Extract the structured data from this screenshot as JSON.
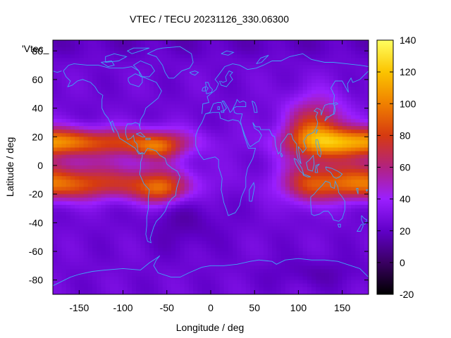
{
  "chart_data": {
    "type": "heatmap",
    "title": "VTEC / TECU 20231126_330.06300",
    "xlabel": "Longitude / deg",
    "ylabel": "Latitude / deg",
    "series_label": "'Vtec_",
    "xlim": [
      -180,
      180
    ],
    "ylim": [
      -90,
      87.5
    ],
    "x_ticks": [
      -150,
      -100,
      -50,
      0,
      50,
      100,
      150
    ],
    "y_ticks": [
      -80,
      -60,
      -40,
      -20,
      0,
      20,
      40,
      60,
      80
    ],
    "colorbar": {
      "range": [
        -20,
        140
      ],
      "ticks": [
        -20,
        0,
        20,
        40,
        60,
        80,
        100,
        120,
        140
      ],
      "palette": [
        "#000000",
        "#3a0062",
        "#6000c8",
        "#9b1fff",
        "#b22280",
        "#d63a10",
        "#f08000",
        "#fbc400",
        "#ffff60"
      ]
    },
    "grid": false,
    "colormap_features": {
      "background_vtec": 25,
      "crest_max_vtec": 115,
      "crests": [
        {
          "lon": -170,
          "lat": 18,
          "vtec": 110
        },
        {
          "lon": -170,
          "lat": -15,
          "vtec": 100
        },
        {
          "lon": 160,
          "lat": 17,
          "vtec": 110
        },
        {
          "lon": 125,
          "lat": -5,
          "vtec": 80
        }
      ]
    }
  }
}
